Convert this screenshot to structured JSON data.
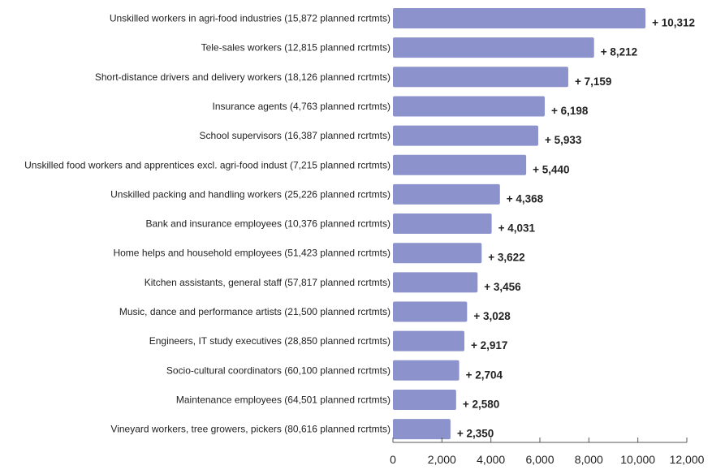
{
  "chart_data": {
    "type": "bar",
    "orientation": "horizontal",
    "categories": [
      "Unskilled workers in agri-food industries (15,872 planned rcrtmts)",
      "Tele-sales workers (12,815 planned rcrtmts)",
      "Short-distance drivers and delivery workers (18,126 planned rcrtmts)",
      "Insurance agents (4,763 planned rcrtmts)",
      "School supervisors (16,387 planned rcrtmts)",
      "Unskilled food workers and apprentices excl. agri-food indust (7,215 planned rcrtmts)",
      "Unskilled packing and handling workers (25,226 planned rcrtmts)",
      "Bank and insurance employees (10,376 planned rcrtmts)",
      "Home helps and household employees (51,423 planned rcrtmts)",
      "Kitchen assistants, general staff (57,817 planned rcrtmts)",
      "Music, dance and performance artists (21,500 planned rcrtmts)",
      "Engineers, IT study executives (28,850 planned rcrtmts)",
      "Socio-cultural coordinators (60,100 planned rcrtmts)",
      "Maintenance employees (64,501 planned rcrtmts)",
      "Vineyard workers, tree growers, pickers (80,616 planned rcrtmts)"
    ],
    "values": [
      10312,
      8212,
      7159,
      6198,
      5933,
      5440,
      4368,
      4031,
      3622,
      3456,
      3028,
      2917,
      2704,
      2580,
      2350
    ],
    "value_labels": [
      "+ 10,312",
      "+ 8,212",
      "+ 7,159",
      "+ 6,198",
      "+ 5,933",
      "+ 5,440",
      "+ 4,368",
      "+ 4,031",
      "+ 3,622",
      "+ 3,456",
      "+ 3,028",
      "+ 2,917",
      "+ 2,704",
      "+ 2,580",
      "+ 2,350"
    ],
    "xlim": [
      0,
      12000
    ],
    "xticks": [
      0,
      2000,
      4000,
      6000,
      8000,
      10000,
      12000
    ],
    "xtick_labels": [
      "0",
      "2,000",
      "4,000",
      "6,000",
      "8,000",
      "10,000",
      "12,000"
    ],
    "title": "",
    "xlabel": "",
    "ylabel": "",
    "grid": false,
    "bar_color": "#8c92cc",
    "axis_color": "#555555"
  }
}
